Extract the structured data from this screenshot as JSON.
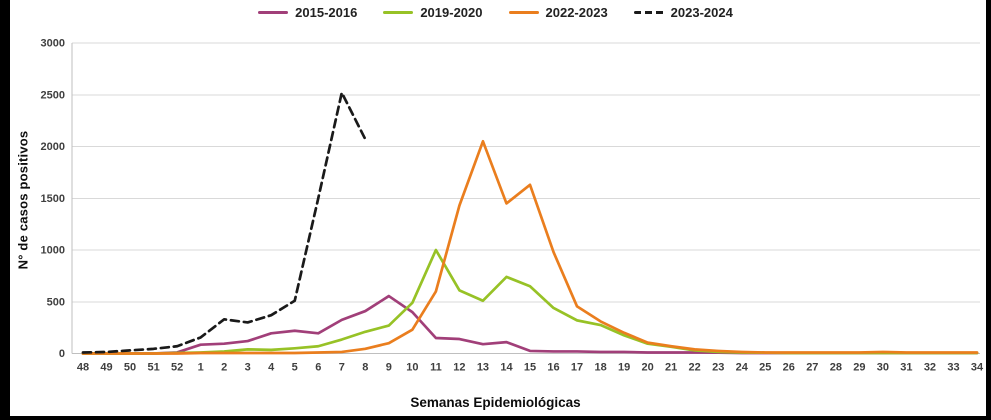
{
  "chart_data": {
    "type": "line",
    "title": "",
    "xlabel": "Semanas Epidemiológicas",
    "ylabel": "N° de casos positivos",
    "categories": [
      "48",
      "49",
      "50",
      "51",
      "52",
      "1",
      "2",
      "3",
      "4",
      "5",
      "6",
      "7",
      "8",
      "9",
      "10",
      "11",
      "12",
      "13",
      "14",
      "15",
      "16",
      "17",
      "18",
      "19",
      "20",
      "21",
      "22",
      "23",
      "24",
      "25",
      "26",
      "27",
      "28",
      "29",
      "30",
      "31",
      "32",
      "33",
      "34"
    ],
    "yticks": [
      0,
      500,
      1000,
      1500,
      2000,
      2500,
      3000
    ],
    "ylim": [
      0,
      3000
    ],
    "grid": true,
    "legend_position": "top-center",
    "gridline_color": "#d9d9d9",
    "axis_line_color": "#bfbfbf",
    "tick_label_color": "#3f3f3f",
    "series": [
      {
        "name": "2015-2016",
        "color": "#A13F79",
        "style": "solid",
        "values": [
          0,
          0,
          0,
          0,
          10,
          85,
          95,
          120,
          195,
          220,
          195,
          325,
          410,
          555,
          400,
          150,
          140,
          90,
          110,
          25,
          20,
          20,
          15,
          15,
          10,
          10,
          10,
          8,
          5,
          5,
          5,
          5,
          5,
          5,
          5,
          5,
          5,
          5,
          5
        ]
      },
      {
        "name": "2019-2020",
        "color": "#97C226",
        "style": "solid",
        "values": [
          0,
          0,
          0,
          0,
          5,
          10,
          20,
          40,
          35,
          50,
          70,
          135,
          210,
          270,
          490,
          1000,
          610,
          510,
          740,
          650,
          440,
          320,
          275,
          175,
          95,
          65,
          30,
          15,
          10,
          8,
          5,
          5,
          5,
          5,
          5,
          5,
          5,
          5,
          5
        ]
      },
      {
        "name": "2022-2023",
        "color": "#EA7E1E",
        "style": "solid",
        "values": [
          0,
          0,
          0,
          0,
          0,
          5,
          5,
          5,
          5,
          5,
          10,
          15,
          45,
          100,
          230,
          600,
          1430,
          2050,
          1450,
          1630,
          980,
          455,
          310,
          200,
          105,
          70,
          40,
          25,
          15,
          10,
          10,
          10,
          10,
          10,
          15,
          10,
          10,
          10,
          10
        ]
      },
      {
        "name": "2023-2024",
        "color": "#1A1A1A",
        "style": "dashed",
        "values": [
          10,
          15,
          30,
          45,
          70,
          155,
          330,
          300,
          370,
          510,
          1500,
          2520,
          2070,
          null,
          null,
          null,
          null,
          null,
          null,
          null,
          null,
          null,
          null,
          null,
          null,
          null,
          null,
          null,
          null,
          null,
          null,
          null,
          null,
          null,
          null,
          null,
          null,
          null,
          null
        ]
      }
    ]
  },
  "frame": {
    "background": "#ffffff",
    "border_color": "#000000"
  }
}
